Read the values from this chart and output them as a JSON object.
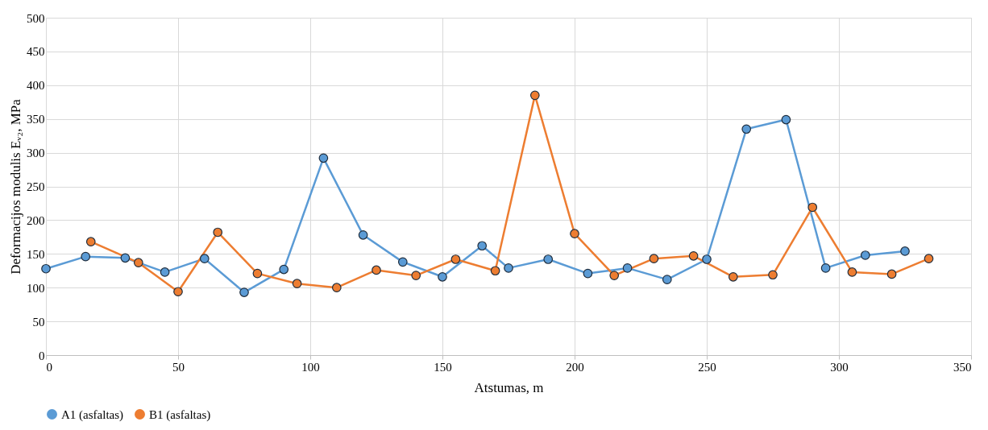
{
  "chart_data": {
    "type": "line",
    "xlabel": "Atstumas, m",
    "ylabel": "Deformacijos modulis Eᵥ₂, MPa",
    "xlim": [
      0,
      350
    ],
    "xticks": [
      0,
      50,
      100,
      150,
      200,
      250,
      300,
      350
    ],
    "ylim": [
      0,
      500
    ],
    "yticks": [
      0,
      50,
      100,
      150,
      200,
      250,
      300,
      350,
      400,
      450,
      500
    ],
    "grid": true,
    "legend": "bottom",
    "marker": "circle",
    "line_style": "solid",
    "series": [
      {
        "name": "A1 (asfaltas)",
        "color": "#5b9bd5",
        "x": [
          0,
          15,
          30,
          45,
          60,
          75,
          90,
          105,
          120,
          135,
          150,
          165,
          175,
          190,
          205,
          220,
          235,
          250,
          265,
          280,
          295,
          310,
          325
        ],
        "values": [
          128,
          146,
          144,
          123,
          143,
          93,
          127,
          292,
          178,
          138,
          116,
          162,
          129,
          142,
          121,
          129,
          112,
          142,
          335,
          349,
          129,
          148,
          154
        ]
      },
      {
        "name": "B1 (asfaltas)",
        "color": "#ed7d31",
        "x": [
          17,
          35,
          50,
          65,
          80,
          95,
          110,
          125,
          140,
          155,
          170,
          185,
          200,
          215,
          230,
          245,
          260,
          275,
          290,
          305,
          320,
          334
        ],
        "values": [
          168,
          137,
          94,
          182,
          121,
          106,
          100,
          126,
          118,
          142,
          125,
          385,
          180,
          118,
          143,
          147,
          116,
          119,
          219,
          123,
          120,
          143
        ]
      }
    ]
  }
}
